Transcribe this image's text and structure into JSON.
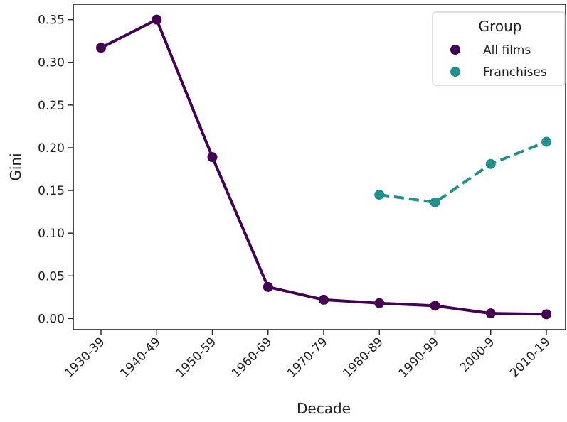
{
  "chart_data": {
    "type": "line",
    "title": "",
    "xlabel": "Decade",
    "ylabel": "Gini",
    "categories": [
      "1930-39",
      "1940-49",
      "1950-59",
      "1960-69",
      "1970-79",
      "1980-89",
      "1990-99",
      "2000-9",
      "2010-19"
    ],
    "yticks": [
      "0.00",
      "0.05",
      "0.10",
      "0.15",
      "0.20",
      "0.25",
      "0.30",
      "0.35"
    ],
    "ylim": [
      -0.013,
      0.368
    ],
    "grid": false,
    "legend": {
      "title": "Group",
      "position": "top-right"
    },
    "series": [
      {
        "name": "All films",
        "color": "#440154",
        "dash": "solid",
        "values": [
          0.317,
          0.35,
          0.189,
          0.037,
          0.022,
          0.018,
          0.015,
          0.006,
          0.005
        ]
      },
      {
        "name": "Franchises",
        "color": "#21908c",
        "dash": "dashed",
        "values": [
          null,
          null,
          null,
          null,
          null,
          0.145,
          0.136,
          0.181,
          0.207
        ]
      }
    ]
  }
}
